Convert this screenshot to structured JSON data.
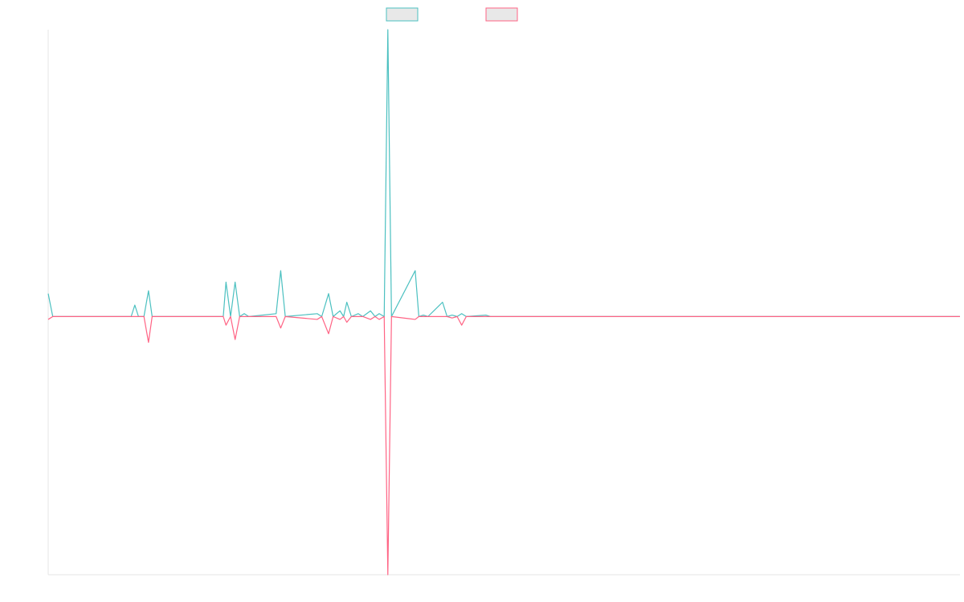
{
  "chart_data": {
    "type": "line",
    "x": [
      0,
      1,
      18.2,
      19,
      19.8,
      21,
      22,
      22.8,
      38.4,
      39,
      40,
      41,
      42,
      43,
      44,
      50,
      51,
      52,
      59,
      60,
      61.5,
      62.5,
      64,
      64.8,
      65.5,
      66.5,
      68,
      69,
      70.7,
      71.7,
      72.6,
      73.7,
      74.5,
      75.3,
      80.5,
      81.3,
      82.3,
      83.3,
      86.5,
      87.5,
      88.6,
      89.7,
      90.7,
      91.7,
      96,
      97,
      200
    ],
    "series": [
      {
        "color": "#4bc0c0",
        "values": [
          8,
          0,
          0,
          4,
          0,
          0,
          9,
          0,
          0,
          12,
          0,
          12,
          0,
          1,
          0,
          1,
          16,
          0,
          1,
          0,
          8,
          0,
          2,
          0,
          5,
          0,
          1,
          0,
          2,
          0,
          1,
          0,
          100,
          0,
          16,
          0,
          0.5,
          0,
          5,
          0,
          0.5,
          0,
          1,
          0,
          0.5,
          0,
          0
        ]
      },
      {
        "color": "#ff6384",
        "values": [
          -1,
          0,
          0,
          0,
          0,
          0,
          -9,
          0,
          0,
          -3,
          0,
          -8,
          0,
          0,
          0,
          0,
          -4,
          0,
          -1,
          0,
          -6,
          0,
          -1,
          0,
          -2,
          0,
          0,
          0,
          -1,
          0,
          -1,
          0,
          -90,
          0,
          -1,
          0,
          0,
          0,
          0,
          0,
          -0.5,
          0,
          -3,
          0,
          0,
          0,
          0
        ]
      }
    ],
    "xlim": [
      0,
      200
    ],
    "ylim": [
      -90,
      100
    ]
  }
}
